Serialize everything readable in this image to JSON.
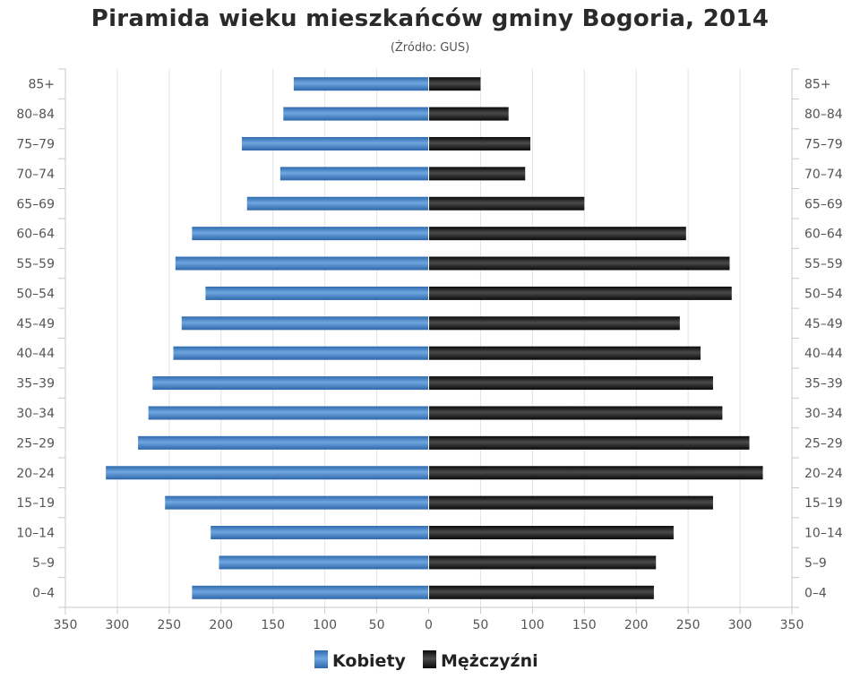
{
  "chart_data": {
    "type": "bar",
    "orientation": "horizontal",
    "title": "Piramida wieku mieszkańców gminy Bogoria, 2014",
    "subtitle": "(Źródło: GUS)",
    "categories": [
      "85+",
      "80–84",
      "75–79",
      "70–74",
      "65–69",
      "60–64",
      "55–59",
      "50–54",
      "45–49",
      "40–44",
      "35–39",
      "30–34",
      "25–29",
      "20–24",
      "15–19",
      "10–14",
      "5–9",
      "0–4"
    ],
    "series": [
      {
        "name": "Kobiety",
        "color": "#3f7fc4",
        "values": [
          130,
          140,
          180,
          143,
          175,
          228,
          244,
          215,
          238,
          246,
          266,
          270,
          280,
          311,
          254,
          210,
          202,
          228
        ]
      },
      {
        "name": "Mężczyźni",
        "color": "#1a1a1a",
        "values": [
          50,
          77,
          98,
          93,
          150,
          248,
          290,
          292,
          242,
          262,
          274,
          283,
          309,
          322,
          274,
          236,
          219,
          217
        ]
      }
    ],
    "xticks": [
      350,
      300,
      250,
      200,
      150,
      100,
      50,
      0,
      50,
      100,
      150,
      200,
      250,
      300,
      350
    ],
    "xlim": [
      -350,
      350
    ],
    "grid": true,
    "legend_position": "bottom"
  }
}
